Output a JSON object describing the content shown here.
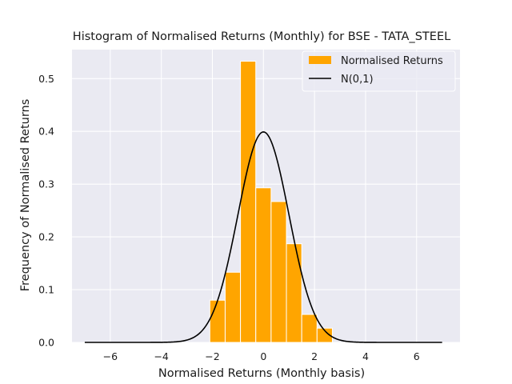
{
  "chart_data": {
    "type": "bar",
    "title": "Histogram of Normalised Returns (Monthly) for BSE - TATA_STEEL",
    "xlabel": "Normalised Returns (Monthly basis)",
    "ylabel": "Frequency of Normalised Returns",
    "xlim": [
      -7.5,
      7.7
    ],
    "ylim": [
      0,
      0.555
    ],
    "xticks": [
      -6,
      -4,
      -2,
      0,
      2,
      4,
      6
    ],
    "xtick_labels": [
      "−6",
      "−4",
      "−2",
      "0",
      "2",
      "4",
      "6"
    ],
    "yticks": [
      0.0,
      0.1,
      0.2,
      0.3,
      0.4,
      0.5
    ],
    "ytick_labels": [
      "0.0",
      "0.1",
      "0.2",
      "0.3",
      "0.4",
      "0.5"
    ],
    "grid": true,
    "legend_position": "top-right",
    "histogram": {
      "name": "Normalised Returns",
      "color": "#FFA500",
      "bin_edges": [
        -2.1,
        -1.5,
        -0.9,
        -0.3,
        0.3,
        0.9,
        1.5,
        2.1,
        2.7
      ],
      "values": [
        0.08,
        0.133,
        0.533,
        0.293,
        0.267,
        0.187,
        0.053,
        0.027
      ]
    },
    "curve": {
      "name": "N(0,1)",
      "color": "#000000",
      "x_range": [
        -7,
        7
      ],
      "distribution": "normal",
      "mean": 0,
      "std": 1
    }
  }
}
